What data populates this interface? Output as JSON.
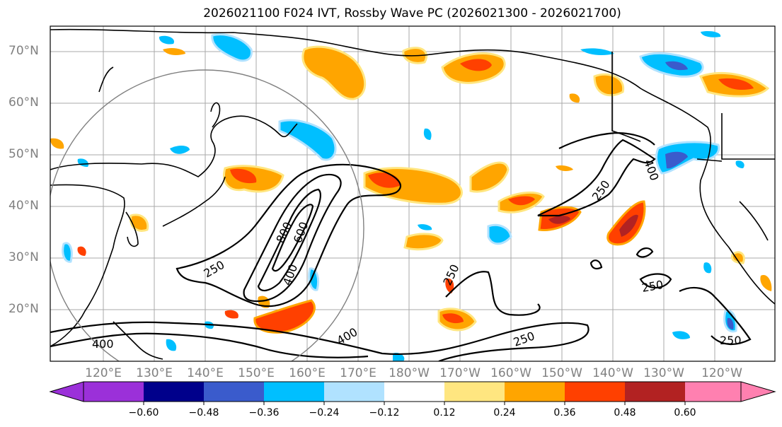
{
  "title": "2026021100 F024 IVT, Rossby Wave PC (2026021300 - 2026021700)",
  "map": {
    "latitude_labels": [
      "70°N",
      "60°N",
      "50°N",
      "40°N",
      "30°N",
      "20°N"
    ],
    "longitude_labels": [
      "120°E",
      "130°E",
      "140°E",
      "150°E",
      "160°E",
      "170°E",
      "180°W",
      "170°W",
      "160°W",
      "150°W",
      "140°W",
      "130°W",
      "120°W"
    ],
    "ivt_contour_labels": [
      "250",
      "400",
      "600",
      "800",
      "400",
      "250",
      "400",
      "250",
      "250",
      "250",
      "250",
      "400"
    ],
    "colors": {
      "land_outline": "#000000",
      "grid": "#a0a0a0",
      "circle": "#808080"
    }
  },
  "colorbar": {
    "tick_labels": [
      "−0.60",
      "−0.48",
      "−0.36",
      "−0.24",
      "−0.12",
      "0.12",
      "0.24",
      "0.36",
      "0.48",
      "0.60"
    ],
    "colors": [
      "#9b30d9",
      "#00008b",
      "#3a5bcc",
      "#00bfff",
      "#b0e2ff",
      "#ffffff",
      "#ffe680",
      "#ffa500",
      "#ff4000",
      "#b22222",
      "#ff80b0"
    ]
  }
}
